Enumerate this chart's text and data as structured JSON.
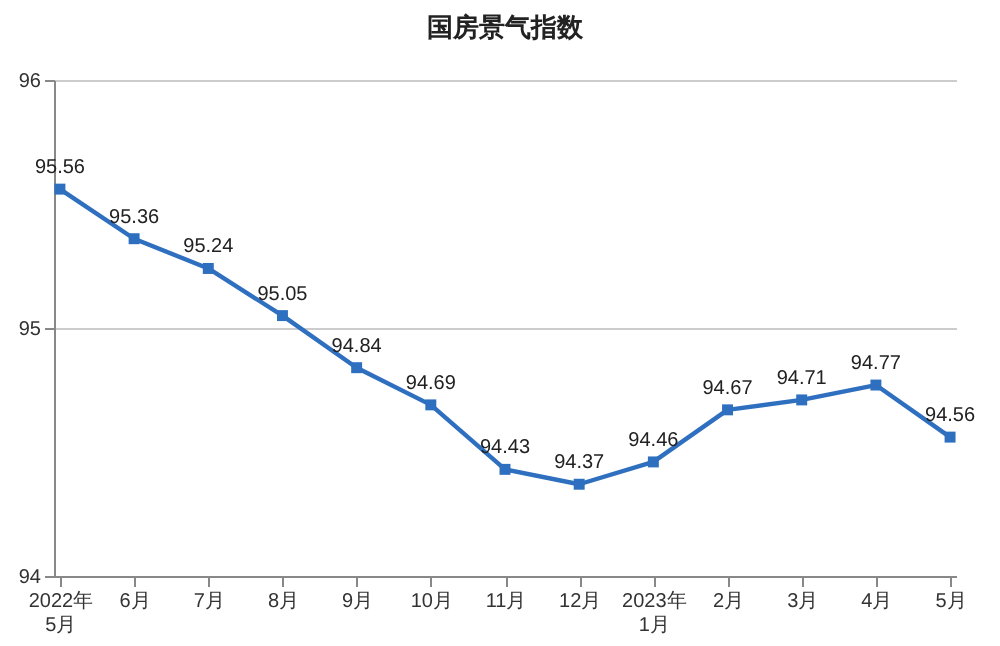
{
  "chart_data": {
    "type": "line",
    "title": "国房景气指数",
    "categories": [
      "2022年\n5月",
      "6月",
      "7月",
      "8月",
      "9月",
      "10月",
      "11月",
      "12月",
      "2023年\n1月",
      "2月",
      "3月",
      "4月",
      "5月"
    ],
    "series": [
      {
        "color": "#2f6fbf",
        "values": [
          95.56,
          95.36,
          95.24,
          95.05,
          94.84,
          94.69,
          94.43,
          94.37,
          94.46,
          94.67,
          94.71,
          94.77,
          94.56
        ]
      }
    ],
    "ylim": [
      94,
      96
    ],
    "yticks": [
      94,
      95,
      96
    ],
    "grid": "y",
    "marker": "square",
    "line_style": "solid",
    "data_labels": true,
    "legend": false
  }
}
